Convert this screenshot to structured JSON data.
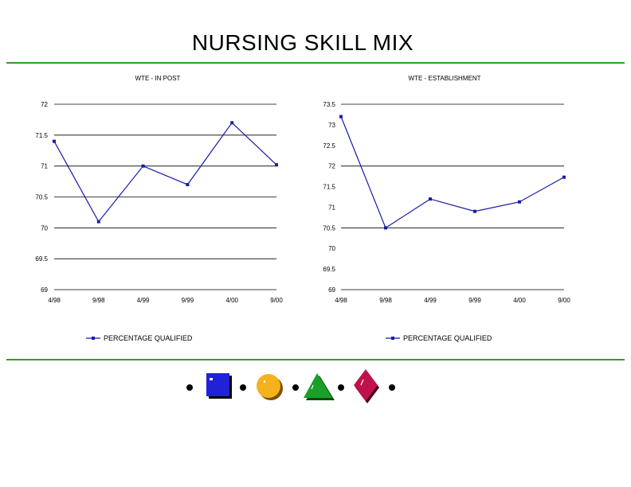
{
  "slide": {
    "title": "NURSING SKILL MIX"
  },
  "chart_data": [
    {
      "type": "line",
      "title": "WTE - IN POST",
      "categories": [
        "4/98",
        "9/98",
        "4/99",
        "9/99",
        "4/00",
        "9/00"
      ],
      "series": [
        {
          "name": "PERCENTAGE QUALIFIED",
          "values": [
            71.4,
            70.1,
            71.0,
            70.7,
            71.7,
            71.02
          ]
        }
      ],
      "ylim": [
        69,
        72
      ],
      "yticks": [
        "69",
        "69.5",
        "70",
        "70.5",
        "71",
        "71.5",
        "72"
      ],
      "ytick_values": [
        69,
        69.5,
        70,
        70.5,
        71,
        71.5,
        72
      ],
      "grid": true,
      "legend": "bottom",
      "colors": {
        "line": "#1a1aa6",
        "grid": "#000000"
      }
    },
    {
      "type": "line",
      "title": "WTE - ESTABLISHMENT",
      "categories": [
        "4/98",
        "9/98",
        "4/99",
        "9/99",
        "4/00",
        "9/00"
      ],
      "series": [
        {
          "name": "PERCENTAGE QUALIFIED",
          "values": [
            73.2,
            70.5,
            71.2,
            70.9,
            71.13,
            71.73
          ]
        }
      ],
      "ylim": [
        69,
        73.5
      ],
      "yticks": [
        "69",
        "69.5",
        "70",
        "70.5",
        "71",
        "71.5",
        "72",
        "72.5",
        "73",
        "73.5"
      ],
      "ytick_values": [
        69,
        69.5,
        70,
        70.5,
        71,
        71.5,
        72,
        72.5,
        73,
        73.5
      ],
      "grid_values": [
        69,
        70.5,
        72,
        73.5
      ],
      "grid": true,
      "legend": "bottom",
      "colors": {
        "line": "#1a1aa6",
        "grid": "#000000"
      }
    }
  ],
  "decorations": {
    "shapes": [
      "bullet-dot-icon",
      "blue-square-icon",
      "bullet-dot-icon",
      "yellow-circle-icon",
      "bullet-dot-icon",
      "green-triangle-icon",
      "bullet-dot-icon",
      "red-diamond-icon",
      "bullet-dot-icon"
    ],
    "colors": {
      "square": "#1f22d6",
      "circle": "#f5b21c",
      "triangle": "#1aa02a",
      "diamond": "#c0124a"
    }
  }
}
